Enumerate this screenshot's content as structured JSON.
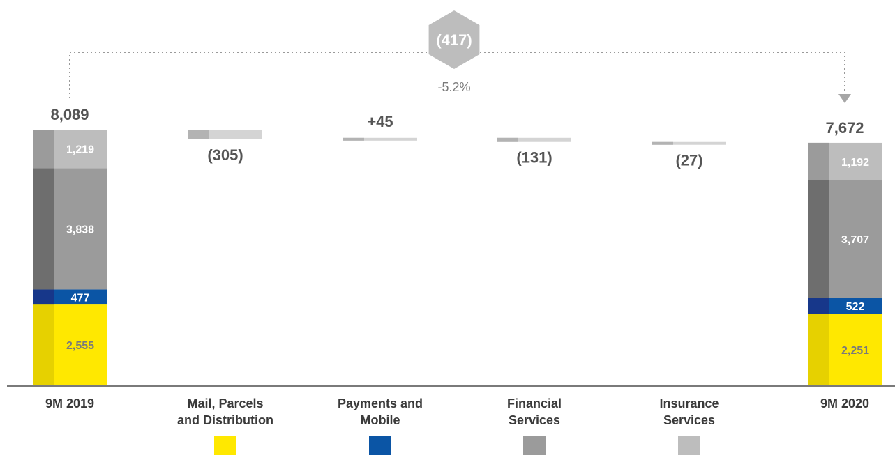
{
  "chart_data": {
    "type": "bar",
    "subtype": "waterfall",
    "categories": [
      "9M 2019",
      "Mail, Parcels and Distribution",
      "Payments and Mobile",
      "Financial Services",
      "Insurance Services",
      "9M 2020"
    ],
    "category_lines": [
      [
        "9M 2019"
      ],
      [
        "Mail, Parcels",
        "and Distribution"
      ],
      [
        "Payments and",
        "Mobile"
      ],
      [
        "Financial",
        "Services"
      ],
      [
        "Insurance",
        "Services"
      ],
      [
        "9M 2020"
      ]
    ],
    "segments": [
      {
        "name": "Mail, Parcels and Distribution",
        "color": "#ffe800",
        "shade": "#e6d100",
        "text_color": "#7a7a7a"
      },
      {
        "name": "Payments and Mobile",
        "color": "#0b55a5",
        "shade": "#17378a",
        "text_color": "#ffffff"
      },
      {
        "name": "Financial Services",
        "color": "#9b9b9b",
        "shade": "#6e6e6e",
        "text_color": "#ffffff"
      },
      {
        "name": "Insurance Services",
        "color": "#bdbdbd",
        "shade": "#9b9b9b",
        "text_color": "#ffffff"
      }
    ],
    "totals": [
      {
        "category": "9M 2019",
        "total": 8089,
        "total_label": "8,089",
        "values": [
          2555,
          477,
          3838,
          1219
        ],
        "labels": [
          "2,555",
          "477",
          "3,838",
          "1,219"
        ]
      },
      {
        "category": "9M 2020",
        "total": 7672,
        "total_label": "7,672",
        "values": [
          2251,
          522,
          3707,
          1192
        ],
        "labels": [
          "2,251",
          "522",
          "3,707",
          "1,192"
        ]
      }
    ],
    "changes": [
      {
        "category": "Mail, Parcels and Distribution",
        "value": -305,
        "label": "(305)"
      },
      {
        "category": "Payments and Mobile",
        "value": 45,
        "label": "+45"
      },
      {
        "category": "Financial Services",
        "value": -131,
        "label": "(131)"
      },
      {
        "category": "Insurance Services",
        "value": -27,
        "label": "(27)"
      }
    ],
    "overall_change": {
      "value": -417,
      "label": "(417)",
      "percent_label": "-5.2%"
    }
  }
}
